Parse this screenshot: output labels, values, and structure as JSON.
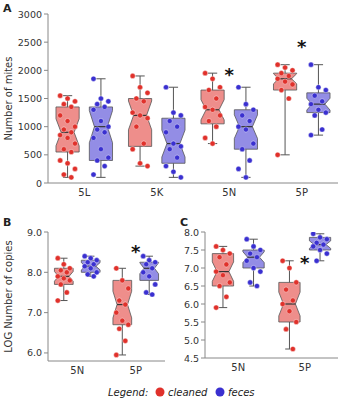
{
  "chart_data": [
    {
      "type": "box",
      "title": "A",
      "ylabel": "Number of mites",
      "categories": [
        "5L",
        "5K",
        "5N",
        "5P"
      ],
      "ylim": [
        0,
        3000
      ],
      "yticks": [
        0,
        500,
        1000,
        1500,
        2000,
        2500,
        3000
      ],
      "series": [
        {
          "name": "cleaned",
          "color": "#e0312b",
          "boxes": [
            {
              "min": 100,
              "q1": 550,
              "median": 900,
              "q3": 1350,
              "max": 1550,
              "points": [
                1550,
                1500,
                1450,
                1400,
                1350,
                1200,
                1100,
                1000,
                950,
                900,
                850,
                800,
                700,
                600,
                550,
                400,
                350,
                250,
                150,
                100
              ]
            },
            {
              "min": 300,
              "q1": 650,
              "median": 1200,
              "q3": 1500,
              "max": 1900,
              "points": [
                1900,
                1700,
                1600,
                1500,
                1450,
                1250,
                1200,
                1150,
                1000,
                700,
                600,
                350,
                300
              ]
            },
            {
              "min": 700,
              "q1": 1050,
              "median": 1300,
              "q3": 1650,
              "max": 1950,
              "points": [
                1950,
                1850,
                1700,
                1650,
                1500,
                1350,
                1300,
                1200,
                1100,
                1000,
                800,
                700
              ]
            },
            {
              "min": 500,
              "q1": 1650,
              "median": 1850,
              "q3": 1950,
              "max": 2100,
              "points": [
                2100,
                2050,
                2000,
                1950,
                1900,
                1850,
                1800,
                1750,
                1650,
                1500,
                500
              ]
            }
          ]
        },
        {
          "name": "feces",
          "color": "#3a30d0",
          "boxes": [
            {
              "min": 100,
              "q1": 400,
              "median": 1000,
              "q3": 1350,
              "max": 1850,
              "points": [
                1850,
                1500,
                1450,
                1400,
                1350,
                1300,
                1100,
                1000,
                950,
                900,
                800,
                600,
                450,
                400,
                300,
                150
              ]
            },
            {
              "min": 100,
              "q1": 350,
              "median": 700,
              "q3": 1150,
              "max": 1700,
              "points": [
                1700,
                1250,
                1200,
                1100,
                1000,
                900,
                700,
                650,
                600,
                450,
                300,
                200,
                100
              ]
            },
            {
              "min": 100,
              "q1": 600,
              "median": 1000,
              "q3": 1300,
              "max": 1700,
              "points": [
                1700,
                1400,
                1300,
                1200,
                1100,
                1000,
                950,
                700,
                600,
                400,
                250,
                100
              ]
            },
            {
              "min": 850,
              "q1": 1250,
              "median": 1400,
              "q3": 1600,
              "max": 2100,
              "points": [
                2100,
                1700,
                1650,
                1550,
                1450,
                1400,
                1300,
                1250,
                1200,
                950,
                850
              ]
            }
          ]
        }
      ],
      "annotations": [
        {
          "category": "5N",
          "y": 1950,
          "text": "*"
        },
        {
          "category": "5P",
          "y": 2450,
          "text": "*"
        }
      ]
    },
    {
      "type": "box",
      "title": "B",
      "ylabel": "LOG Number of copies",
      "categories": [
        "5N",
        "5P"
      ],
      "ylim": [
        5.8,
        9.0
      ],
      "yticks": [
        {
          "value": 6,
          "label": "6.0"
        },
        {
          "value": 7,
          "label": "7.0"
        },
        {
          "value": 8,
          "label": "8.0"
        },
        {
          "value": 9,
          "label": "9.0"
        }
      ],
      "series": [
        {
          "name": "cleaned",
          "color": "#e0312b",
          "boxes": [
            {
              "min": 7.3,
              "q1": 7.7,
              "median": 7.9,
              "q3": 8.1,
              "max": 8.35,
              "points": [
                8.35,
                8.2,
                8.1,
                8.05,
                8.0,
                7.9,
                7.85,
                7.8,
                7.7,
                7.5,
                7.3
              ]
            },
            {
              "min": 5.95,
              "q1": 6.7,
              "median": 7.2,
              "q3": 7.8,
              "max": 8.1,
              "points": [
                8.1,
                7.8,
                7.6,
                7.3,
                7.2,
                7.0,
                6.8,
                6.7,
                6.6,
                6.3,
                5.95
              ]
            }
          ]
        },
        {
          "name": "feces",
          "color": "#3a30d0",
          "boxes": [
            {
              "min": 7.9,
              "q1": 8.0,
              "median": 8.15,
              "q3": 8.3,
              "max": 8.4,
              "points": [
                8.4,
                8.35,
                8.3,
                8.25,
                8.2,
                8.15,
                8.1,
                8.0,
                7.95,
                7.9
              ]
            },
            {
              "min": 7.45,
              "q1": 7.8,
              "median": 8.1,
              "q3": 8.25,
              "max": 8.4,
              "points": [
                8.4,
                8.3,
                8.25,
                8.2,
                8.1,
                8.0,
                7.9,
                7.7,
                7.5,
                7.45
              ]
            }
          ]
        }
      ],
      "annotations": [
        {
          "category": "5P",
          "y": 8.55,
          "text": "*"
        }
      ]
    },
    {
      "type": "box",
      "title": "C",
      "categories": [
        "5N",
        "5P"
      ],
      "ylim": [
        4.5,
        8.0
      ],
      "yticks": [
        {
          "value": 4.5,
          "label": "4.5"
        },
        {
          "value": 5,
          "label": "5.0"
        },
        {
          "value": 5.5,
          "label": "5.5"
        },
        {
          "value": 6,
          "label": "6.0"
        },
        {
          "value": 6.5,
          "label": "6.5"
        },
        {
          "value": 7,
          "label": "7.0"
        },
        {
          "value": 7.5,
          "label": "7.5"
        },
        {
          "value": 8,
          "label": "8.0"
        }
      ],
      "series": [
        {
          "name": "cleaned",
          "color": "#e0312b",
          "boxes": [
            {
              "min": 5.9,
              "q1": 6.5,
              "median": 6.9,
              "q3": 7.4,
              "max": 7.6,
              "points": [
                7.6,
                7.5,
                7.4,
                7.3,
                7.1,
                6.9,
                6.8,
                6.6,
                6.5,
                6.2,
                5.9
              ]
            },
            {
              "min": 4.75,
              "q1": 5.5,
              "median": 6.0,
              "q3": 6.6,
              "max": 7.2,
              "points": [
                7.2,
                7.0,
                6.6,
                6.4,
                6.1,
                6.0,
                5.8,
                5.5,
                5.3,
                4.75
              ]
            }
          ]
        },
        {
          "name": "feces",
          "color": "#3a30d0",
          "boxes": [
            {
              "min": 6.5,
              "q1": 7.0,
              "median": 7.3,
              "q3": 7.5,
              "max": 7.8,
              "points": [
                7.8,
                7.6,
                7.5,
                7.4,
                7.3,
                7.2,
                7.0,
                6.9,
                6.6,
                6.5
              ]
            },
            {
              "min": 7.2,
              "q1": 7.5,
              "median": 7.65,
              "q3": 7.85,
              "max": 7.95,
              "points": [
                7.95,
                7.85,
                7.8,
                7.7,
                7.65,
                7.6,
                7.5,
                7.4,
                7.2
              ]
            }
          ]
        }
      ],
      "annotations": [
        {
          "category": "5P",
          "y": 7.2,
          "text": "*"
        }
      ],
      "legend": "bottom",
      "legend_title": "Legend:"
    }
  ]
}
